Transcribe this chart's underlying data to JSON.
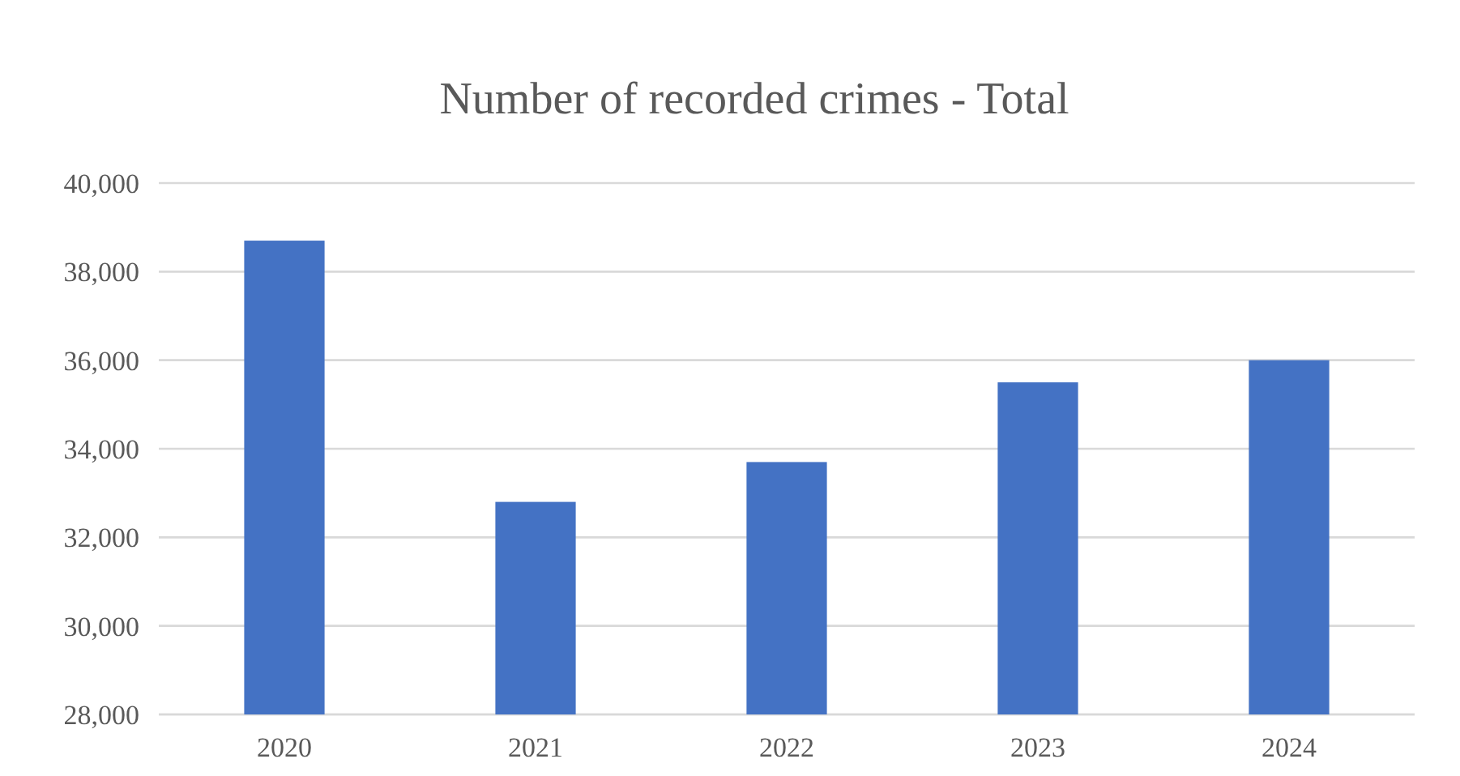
{
  "chart_data": {
    "type": "bar",
    "title": "Number of recorded crimes - Total",
    "categories": [
      "2020",
      "2021",
      "2022",
      "2023",
      "2024"
    ],
    "values": [
      38700,
      32800,
      33700,
      35500,
      36000
    ],
    "color": "#4472c4",
    "ylim": [
      28000,
      40000
    ],
    "yticks": [
      {
        "value": 28000,
        "label": "28,000"
      },
      {
        "value": 30000,
        "label": "30,000"
      },
      {
        "value": 32000,
        "label": "32,000"
      },
      {
        "value": 34000,
        "label": "34,000"
      },
      {
        "value": 36000,
        "label": "36,000"
      },
      {
        "value": 38000,
        "label": "38,000"
      },
      {
        "value": 40000,
        "label": "40,000"
      }
    ],
    "grid": "y"
  }
}
